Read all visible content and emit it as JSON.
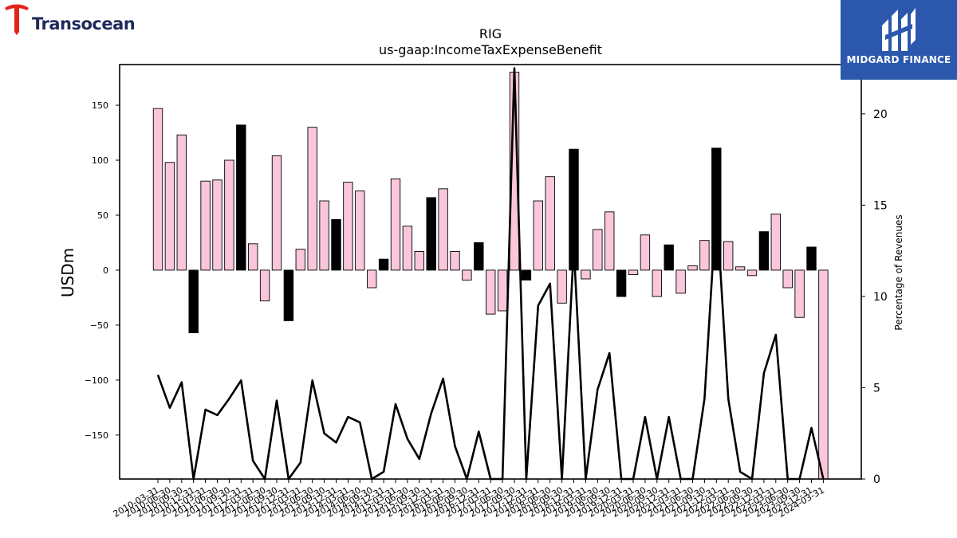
{
  "logos": {
    "left_text": "Transocean",
    "right_text": "MIDGARD FINANCE"
  },
  "chart_data": {
    "type": "bar",
    "title": "RIG",
    "subtitle": "us-gaap:IncomeTaxExpenseBenefit",
    "ylabel": "USDm",
    "y2label": "Percentage of Revenues",
    "ylim": [
      -190,
      187
    ],
    "y2lim": [
      0,
      22.7
    ],
    "yticks": [
      -150,
      -100,
      -50,
      0,
      50,
      100,
      150
    ],
    "y2ticks": [
      0,
      5,
      10,
      15,
      20
    ],
    "colors": {
      "positive": "#f9c6dc",
      "negative": "#000000",
      "line": "#000000"
    },
    "dates": [
      "2010-03-31",
      "2010-06-30",
      "2010-09-30",
      "2010-12-31",
      "2011-03-31",
      "2011-06-30",
      "2011-09-30",
      "2011-12-31",
      "2012-03-31",
      "2012-06-30",
      "2012-09-30",
      "2012-12-31",
      "2013-03-31",
      "2013-06-30",
      "2013-09-30",
      "2013-12-31",
      "2014-03-31",
      "2014-06-30",
      "2014-09-30",
      "2014-12-31",
      "2015-03-31",
      "2015-06-30",
      "2015-09-30",
      "2015-12-31",
      "2016-03-31",
      "2016-06-30",
      "2016-09-30",
      "2016-12-31",
      "2017-03-31",
      "2017-06-30",
      "2017-09-30",
      "2017-12-31",
      "2018-03-31",
      "2018-06-30",
      "2018-09-30",
      "2018-12-31",
      "2019-03-31",
      "2019-06-30",
      "2019-09-30",
      "2019-12-31",
      "2020-03-31",
      "2020-06-30",
      "2020-09-30",
      "2020-12-31",
      "2021-03-31",
      "2021-06-30",
      "2021-09-30",
      "2021-12-31",
      "2022-03-31",
      "2022-06-30",
      "2022-09-30",
      "2022-12-31",
      "2023-03-31",
      "2023-06-30",
      "2023-09-30",
      "2023-12-31",
      "2024-03-31"
    ],
    "tick_labels": [
      "2010-03-31",
      "2010-06-30",
      "2010-09-30",
      "2010-12-31",
      "2011-03-31",
      "2011-06-30",
      "2011-09-30",
      "2011-12-31",
      "2012-03-31",
      "2012-06-30",
      "2012-09-30",
      "2012-12-31",
      "2013-03-31",
      "2013-06-30",
      "2013-09-30",
      "2013-12-31",
      "2014-03-31",
      "2014-06-30",
      "2014-09-30",
      "2014-12-31",
      "2015-03-31",
      "2015-06-30",
      "2015-09-30",
      "2015-12-31",
      "2016-03-31",
      "2016-06-30",
      "2016-09-30",
      "2016-12-31",
      "2017-03-31",
      "2017-06-30",
      "2017-09-30",
      "2017-12-31",
      "2018-03-31",
      "2018-06-30",
      "2018-09-30",
      "2018-12-31",
      "2019-03-31",
      "2019-06-30",
      "2019-09-30",
      "2019-12-31",
      "2020-03-31",
      "2020-06-30",
      "2020-09-30",
      "2020-12-31",
      "2021-03-31",
      "2021-06-30",
      "2021-09-30",
      "2021-12-31",
      "2022-03-31",
      "2022-06-30",
      "2022-09-30",
      "2022-12-31",
      "2023-03-31",
      "2023-06-30",
      "2023-09-30",
      "2023-12-31",
      "2024-03-31"
    ],
    "values": [
      147,
      98,
      123,
      -57,
      81,
      82,
      100,
      132,
      24,
      -28,
      104,
      -46,
      19,
      130,
      63,
      46,
      80,
      72,
      -16,
      10,
      83,
      40,
      17,
      66,
      74,
      17,
      -9,
      25,
      -40,
      -37,
      180,
      -9,
      63,
      85,
      -30,
      110,
      -8,
      37,
      53,
      -24,
      -4,
      32,
      -24,
      23,
      -21,
      4,
      27,
      111,
      26,
      3,
      -5,
      35,
      51,
      -16,
      -43,
      21,
      -190
    ],
    "negative_highlight": [
      false,
      false,
      false,
      true,
      false,
      false,
      false,
      true,
      false,
      false,
      false,
      true,
      false,
      false,
      false,
      true,
      false,
      false,
      false,
      true,
      false,
      false,
      false,
      true,
      false,
      false,
      false,
      true,
      false,
      false,
      false,
      true,
      false,
      false,
      false,
      true,
      false,
      false,
      false,
      true,
      false,
      false,
      false,
      true,
      false,
      false,
      false,
      true,
      false,
      false,
      false,
      true,
      false,
      false,
      false,
      true,
      false
    ],
    "pct_revenue": [
      5.7,
      3.9,
      5.3,
      0,
      3.8,
      3.5,
      4.4,
      5.4,
      1.0,
      0,
      4.3,
      0,
      0.9,
      5.4,
      2.5,
      2.0,
      3.4,
      3.1,
      0,
      0.4,
      4.1,
      2.2,
      1.1,
      3.6,
      5.5,
      1.8,
      0,
      2.6,
      0,
      0,
      22.5,
      0,
      9.5,
      10.7,
      0,
      12.7,
      0,
      4.9,
      6.9,
      0,
      0,
      3.4,
      0,
      3.4,
      0,
      0,
      4.4,
      15.0,
      4.4,
      0.4,
      0,
      5.8,
      7.9,
      0,
      0,
      2.8,
      0
    ]
  }
}
